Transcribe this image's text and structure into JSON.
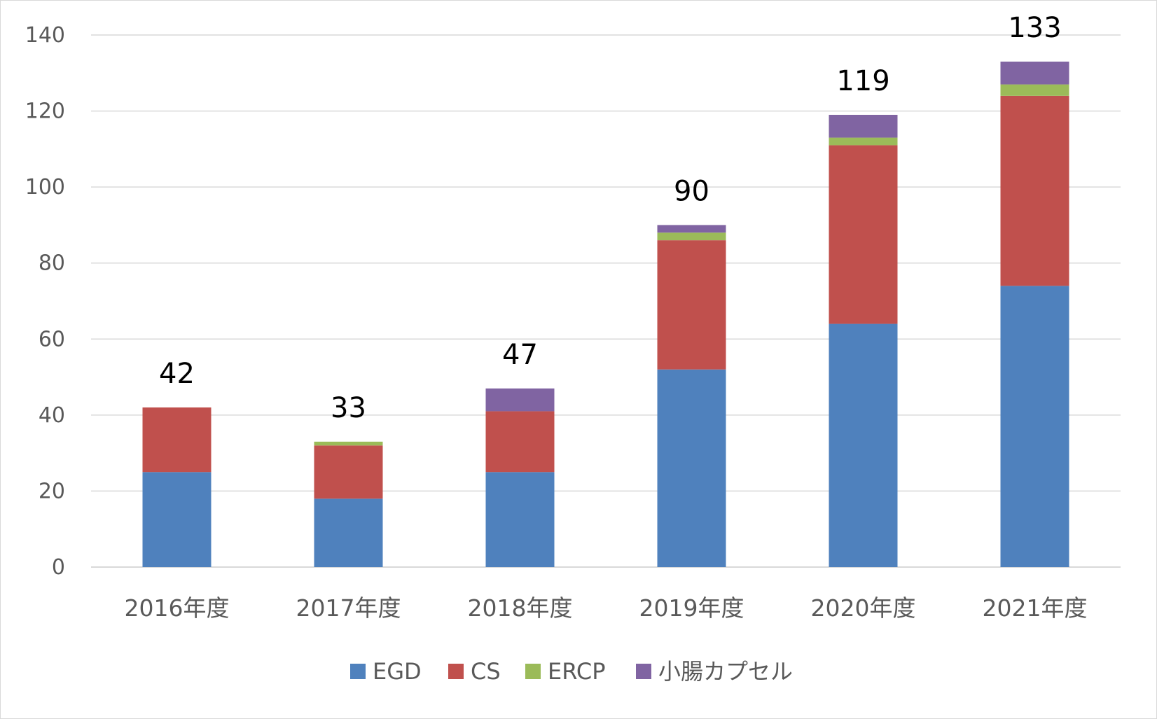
{
  "chart_data": {
    "type": "bar",
    "stacked": true,
    "title": "",
    "xlabel": "",
    "ylabel": "",
    "categories": [
      "2016年度",
      "2017年度",
      "2018年度",
      "2019年度",
      "2020年度",
      "2021年度"
    ],
    "series": [
      {
        "name": "EGD",
        "color": "#4f81bd",
        "values": [
          25,
          18,
          25,
          52,
          64,
          74
        ]
      },
      {
        "name": "CS",
        "color": "#c0504d",
        "values": [
          17,
          14,
          16,
          34,
          47,
          50
        ]
      },
      {
        "name": "ERCP",
        "color": "#9bbb59",
        "values": [
          0,
          1,
          0,
          2,
          2,
          3
        ]
      },
      {
        "name": "小腸カプセル",
        "color": "#8064a2",
        "values": [
          0,
          0,
          6,
          2,
          6,
          6
        ]
      }
    ],
    "totals": [
      "42",
      "33",
      "47",
      "90",
      "119",
      "133"
    ],
    "ylim": [
      0,
      140
    ],
    "yticks": [
      "0",
      "20",
      "40",
      "60",
      "80",
      "100",
      "120",
      "140"
    ],
    "grid": true,
    "legend_position": "bottom"
  }
}
